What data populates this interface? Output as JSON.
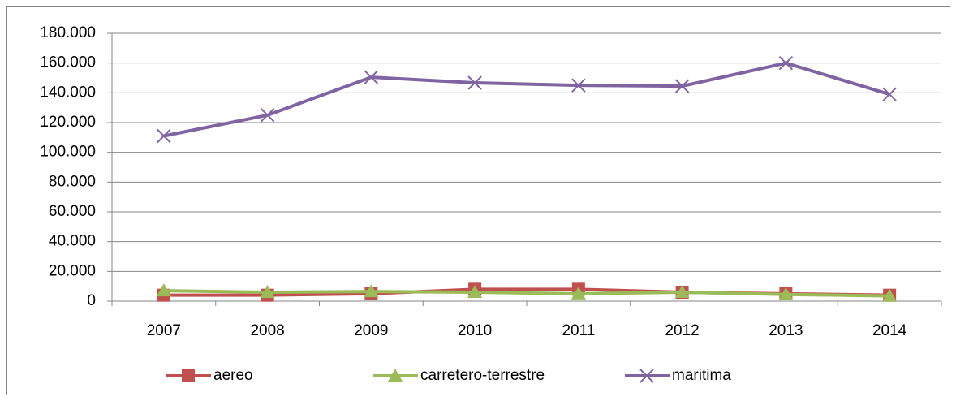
{
  "chart_data": {
    "type": "line",
    "categories": [
      "2007",
      "2008",
      "2009",
      "2010",
      "2011",
      "2012",
      "2013",
      "2014"
    ],
    "series": [
      {
        "name": "aereo",
        "color": "#c0504d",
        "marker": "square",
        "values": [
          4000,
          4000,
          5000,
          8000,
          8000,
          6000,
          5000,
          4000
        ]
      },
      {
        "name": "carretero-terrestre",
        "color": "#9bbb59",
        "marker": "triangle",
        "values": [
          7000,
          6000,
          6500,
          6000,
          5000,
          6000,
          4500,
          3500
        ]
      },
      {
        "name": "maritima",
        "color": "#8064a2",
        "marker": "x",
        "values": [
          111000,
          125000,
          150500,
          146700,
          145000,
          144500,
          160000,
          139000
        ]
      }
    ],
    "ylim": [
      0,
      180000
    ],
    "yticks": [
      0,
      {
        "value": 20000,
        "label": "20.000"
      },
      {
        "value": 40000,
        "label": "40.000"
      },
      {
        "value": 60000,
        "label": "60.000"
      },
      {
        "value": 80000,
        "label": "80.000"
      },
      {
        "value": 100000,
        "label": "100.000"
      },
      {
        "value": 120000,
        "label": "120.000"
      },
      {
        "value": 140000,
        "label": "140.000"
      },
      {
        "value": 160000,
        "label": "160.000"
      },
      {
        "value": 180000,
        "label": "180.000"
      }
    ],
    "grid": true,
    "legend": "bottom"
  }
}
